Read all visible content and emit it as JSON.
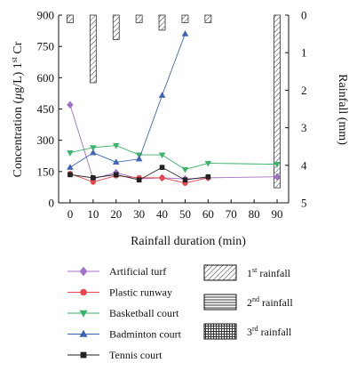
{
  "chart_data": {
    "type": "line",
    "xlabel": "Rainfall duration (min)",
    "ylabel": "Concentration (μg/L) 1st Cr",
    "ylabel_parts": [
      "Concentration (",
      "μ",
      "g/L) 1",
      "st",
      " Cr"
    ],
    "y2label": "Rainfall (mm)",
    "xlim": [
      -5,
      95
    ],
    "ylim": [
      0,
      900
    ],
    "y2lim": [
      0,
      5
    ],
    "x_ticks": [
      0,
      10,
      20,
      30,
      40,
      50,
      60,
      70,
      80,
      90
    ],
    "y_ticks": [
      0,
      150,
      300,
      450,
      600,
      750,
      900
    ],
    "y2_ticks": [
      0,
      1,
      2,
      3,
      4,
      5
    ],
    "series": [
      {
        "name": "Artificial turf",
        "color": "#a070c8",
        "marker": "diamond",
        "x": [
          0,
          10,
          20,
          30,
          40,
          50,
          60,
          90
        ],
        "values": [
          470,
          115,
          145,
          115,
          120,
          115,
          120,
          125
        ]
      },
      {
        "name": "Plastic runway",
        "color": "#e8484d",
        "marker": "circle",
        "x": [
          0,
          10,
          20,
          30,
          40,
          50,
          60
        ],
        "values": [
          140,
          100,
          130,
          120,
          120,
          95,
          120
        ]
      },
      {
        "name": "Basketball court",
        "color": "#3cb36a",
        "marker": "triangle-down",
        "x": [
          0,
          10,
          20,
          30,
          40,
          50,
          60,
          90
        ],
        "values": [
          240,
          265,
          275,
          230,
          230,
          160,
          190,
          185
        ]
      },
      {
        "name": "Badminton court",
        "color": "#3a63b5",
        "marker": "triangle-up",
        "x": [
          0,
          10,
          20,
          30,
          40,
          50
        ],
        "values": [
          170,
          240,
          195,
          210,
          515,
          810
        ]
      },
      {
        "name": "Tennis court",
        "color": "#222222",
        "marker": "square",
        "x": [
          0,
          10,
          20,
          30,
          40,
          50,
          60
        ],
        "values": [
          135,
          120,
          135,
          110,
          170,
          110,
          125
        ]
      }
    ],
    "rainfall": {
      "axis": "y2",
      "bars": [
        {
          "x": 0,
          "value": 0.2,
          "pattern": "diag"
        },
        {
          "x": 10,
          "value": 1.8,
          "pattern": "diag"
        },
        {
          "x": 20,
          "value": 0.65,
          "pattern": "diag"
        },
        {
          "x": 30,
          "value": 0.2,
          "pattern": "diag"
        },
        {
          "x": 40,
          "value": 0.4,
          "pattern": "diag"
        },
        {
          "x": 50,
          "value": 0.2,
          "pattern": "diag"
        },
        {
          "x": 60,
          "value": 0.2,
          "pattern": "diag"
        },
        {
          "x": 90,
          "value": 4.6,
          "pattern": "diag"
        }
      ]
    },
    "legend_lines": [
      "Artificial turf",
      "Plastic runway",
      "Basketball court",
      "Badminton court",
      "Tennis court"
    ],
    "legend_bars": [
      {
        "pattern": "diag",
        "num": "1",
        "sup": "st",
        "text": " rainfall"
      },
      {
        "pattern": "horiz",
        "num": "2",
        "sup": "nd",
        "text": " rainfall"
      },
      {
        "pattern": "grid",
        "num": "3",
        "sup": "rd",
        "text": " rainfall"
      }
    ]
  }
}
